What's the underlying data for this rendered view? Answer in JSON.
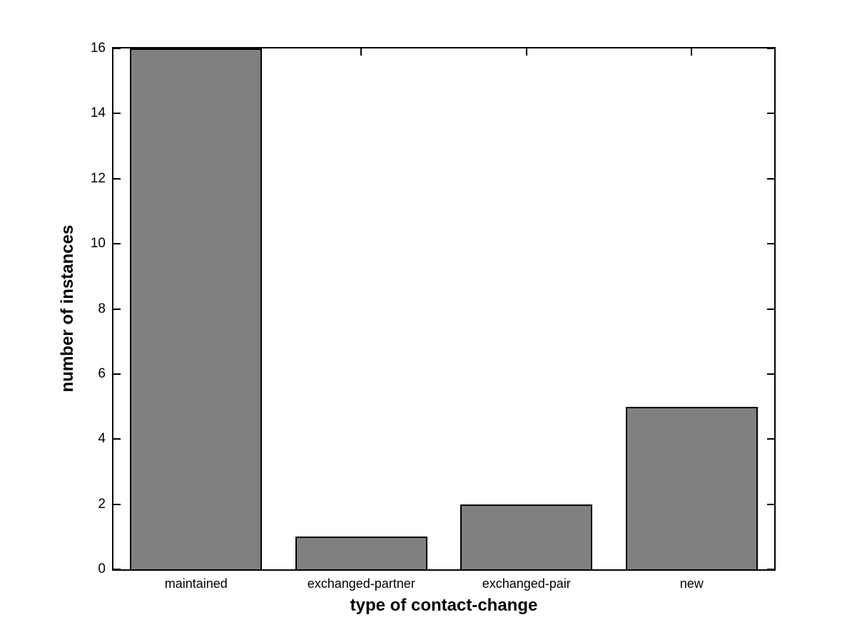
{
  "chart_data": {
    "type": "bar",
    "title": "",
    "categories": [
      "maintained",
      "exchanged-partner",
      "exchanged-pair",
      "new"
    ],
    "values": [
      16,
      1,
      2,
      5
    ],
    "xlabel": "type of contact-change",
    "ylabel": "number of instances",
    "ylim": [
      0,
      16
    ],
    "yticks": [
      0,
      2,
      4,
      6,
      8,
      10,
      12,
      14,
      16
    ],
    "bar_width_fraction": 0.8,
    "bar_color": "#808080",
    "bar_edge_color": "#000000",
    "axis_color": "#000000",
    "background_color": "#ffffff",
    "grid": false,
    "legend_position": "none"
  }
}
